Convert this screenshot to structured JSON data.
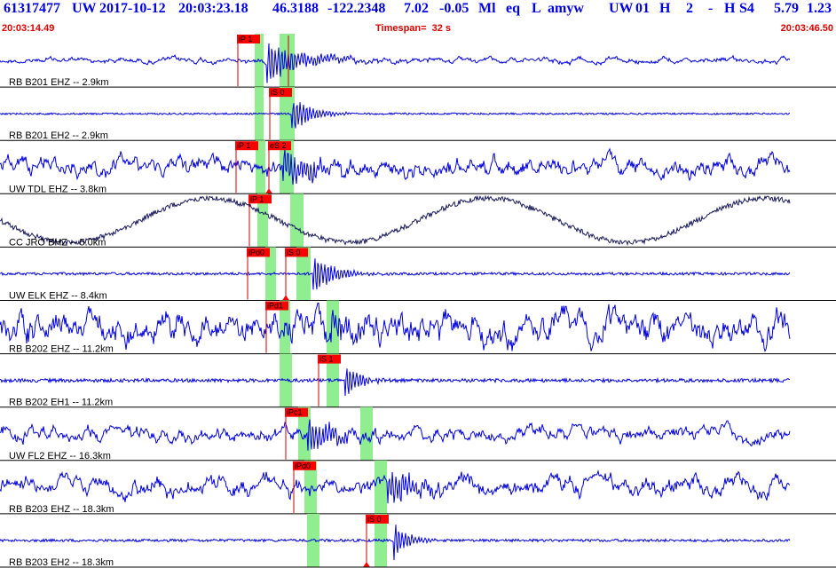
{
  "header": {
    "event_id": "61317477",
    "network": "UW",
    "date": "2017-10-12",
    "origin_time": "20:03:23.18",
    "latitude": "46.3188",
    "longitude": "-122.2348",
    "depth": "7.02",
    "magnitude": "-0.05",
    "mag_type": "Ml",
    "event_type": "eq",
    "location_flag": "L",
    "analyst": "amyw",
    "agency": "UW",
    "version": "01",
    "quality_flag": "H",
    "num_flag": "2",
    "dash": "-",
    "source_flag": "H",
    "s_flag": "S4",
    "value1": "5.79",
    "value2": "1.23",
    "time_start": "20:03:14.49",
    "time_end": "20:03:46.50",
    "timespan_label": "Timespan=",
    "timespan_value": "32 s"
  },
  "colors": {
    "trace": "#0000dd",
    "trace_alt": "#1a1a5c",
    "pick_flag": "#ff0000",
    "pick_line": "#cc0000",
    "window": "#90ee90",
    "header_text": "#0000e6",
    "time_text": "#e00000",
    "separator": "#000000"
  },
  "traces": [
    {
      "label": "RB B201 EHZ -- 2.9km",
      "style": "noise",
      "amp": 3,
      "color_key": "trace",
      "picks": [
        {
          "label": "iP 1",
          "x": 268,
          "mode": "line"
        },
        {
          "label": "",
          "x": 325,
          "mode": "line"
        }
      ],
      "windows": [
        {
          "x": 287,
          "w": 10
        },
        {
          "x": 315,
          "w": 17
        }
      ],
      "events": [
        {
          "x": 300,
          "amp": 26,
          "decay": 80
        }
      ]
    },
    {
      "label": "RB B201 EH2 -- 2.9km",
      "style": "flat",
      "amp": 1,
      "color_key": "trace",
      "picks": [
        {
          "label": "iS 0",
          "x": 304,
          "mode": "line"
        }
      ],
      "windows": [
        {
          "x": 287,
          "w": 10
        },
        {
          "x": 315,
          "w": 17
        }
      ],
      "events": [
        {
          "x": 328,
          "amp": 26,
          "decay": 40
        }
      ]
    },
    {
      "label": "UW TDL EHZ -- 3.8km",
      "style": "noise",
      "amp": 9,
      "color_key": "trace",
      "picks": [
        {
          "label": "iP 1",
          "x": 266,
          "mode": "line"
        },
        {
          "label": "eS 2",
          "x": 303,
          "mode": "triangle"
        }
      ],
      "windows": [
        {
          "x": 288,
          "w": 11
        },
        {
          "x": 315,
          "w": 16
        }
      ],
      "events": [
        {
          "x": 318,
          "amp": 26,
          "decay": 70
        }
      ]
    },
    {
      "label": "CC JRO BHZ -- 5.0km",
      "style": "wave",
      "amp": 25,
      "color_key": "trace_alt",
      "picks": [
        {
          "label": "iP 1",
          "x": 281,
          "mode": "line"
        }
      ],
      "windows": [
        {
          "x": 290,
          "w": 12
        },
        {
          "x": 327,
          "w": 15
        }
      ],
      "events": []
    },
    {
      "label": "UW ELK EHZ -- 8.4km",
      "style": "flat",
      "amp": 1.5,
      "color_key": "trace",
      "picks": [
        {
          "label": "iPd0",
          "x": 279,
          "mode": "line"
        },
        {
          "label": "iS 0",
          "x": 322,
          "mode": "triangle"
        }
      ],
      "windows": [
        {
          "x": 299,
          "w": 12
        },
        {
          "x": 334,
          "w": 16
        }
      ],
      "events": [
        {
          "x": 352,
          "amp": 26,
          "decay": 45
        }
      ]
    },
    {
      "label": "RB B202 EHZ -- 11.2km",
      "style": "noise",
      "amp": 16,
      "color_key": "trace",
      "picks": [
        {
          "label": "iPd1",
          "x": 300,
          "mode": "line"
        }
      ],
      "windows": [
        {
          "x": 315,
          "w": 12
        },
        {
          "x": 368,
          "w": 14
        }
      ],
      "events": [
        {
          "x": 372,
          "amp": 20,
          "decay": 70
        }
      ]
    },
    {
      "label": "RB B202 EH1 -- 11.2km",
      "style": "flat",
      "amp": 2,
      "color_key": "trace",
      "picks": [
        {
          "label": "iS 1",
          "x": 359,
          "mode": "line"
        }
      ],
      "windows": [
        {
          "x": 315,
          "w": 14
        },
        {
          "x": 368,
          "w": 14
        }
      ],
      "events": [
        {
          "x": 388,
          "amp": 24,
          "decay": 30
        }
      ]
    },
    {
      "label": "UW FL2 EHZ -- 16.3km",
      "style": "noise",
      "amp": 7,
      "color_key": "trace",
      "picks": [
        {
          "label": "iPc1",
          "x": 322,
          "mode": "line"
        }
      ],
      "windows": [
        {
          "x": 336,
          "w": 14
        },
        {
          "x": 406,
          "w": 14
        }
      ],
      "events": [
        {
          "x": 346,
          "amp": 24,
          "decay": 60
        }
      ]
    },
    {
      "label": "RB B203 EHZ -- 18.3km",
      "style": "noise",
      "amp": 9,
      "color_key": "trace",
      "picks": [
        {
          "label": "iPd0",
          "x": 331,
          "mode": "line"
        }
      ],
      "windows": [
        {
          "x": 343,
          "w": 14
        },
        {
          "x": 422,
          "w": 14
        }
      ],
      "events": [
        {
          "x": 436,
          "amp": 22,
          "decay": 70
        }
      ]
    },
    {
      "label": "RB B203 EH2 -- 18.3km",
      "style": "flat",
      "amp": 1.5,
      "color_key": "trace",
      "picks": [
        {
          "label": "iS 0",
          "x": 413,
          "mode": "triangle"
        }
      ],
      "windows": [
        {
          "x": 346,
          "w": 14
        },
        {
          "x": 422,
          "w": 14
        }
      ],
      "events": [
        {
          "x": 443,
          "amp": 26,
          "decay": 30
        }
      ]
    }
  ]
}
